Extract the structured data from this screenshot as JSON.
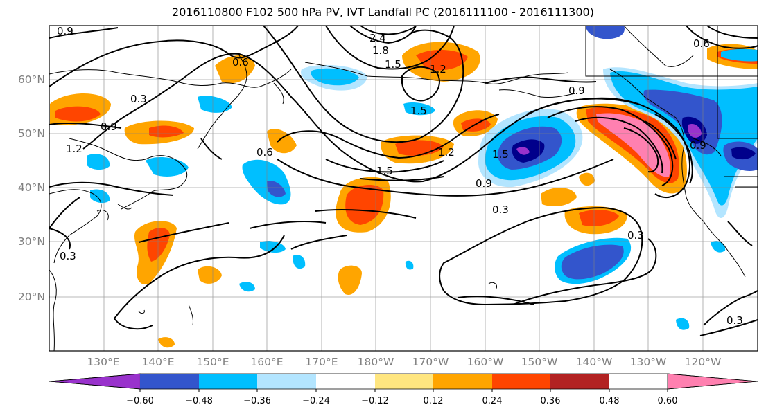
{
  "title": "2016110800 F102 500 hPa PV, IVT Landfall PC (2016111100 - 2016111300)",
  "map": {
    "lon_labels": [
      "130°E",
      "140°E",
      "150°E",
      "160°E",
      "170°E",
      "180°W",
      "170°W",
      "160°W",
      "150°W",
      "140°W",
      "130°W",
      "120°W"
    ],
    "lat_labels": [
      "60°N",
      "50°N",
      "40°N",
      "30°N",
      "20°N"
    ],
    "contour_labels": [
      "0.9",
      "0.6",
      "0.3",
      "0.9",
      "1.2",
      "2.4",
      "1.8",
      "1.5",
      "1.2",
      "1.5",
      "0.6",
      "1.2",
      "1.5",
      "1.5",
      "0.9",
      "0.3",
      "0.9",
      "0.9",
      "0.3",
      "0.3",
      "0.3",
      "0.6"
    ],
    "colors": {
      "pos_low": "#ffe680",
      "pos_mid": "#ffa500",
      "pos_high": "#ff4500",
      "pos_max": "#ff80b0",
      "neg_low": "#00bfff",
      "neg_mid": "#3355cc",
      "neg_high": "#00008b",
      "neg_max": "#9932cc"
    }
  },
  "colorbar": {
    "ticks": [
      "−0.60",
      "−0.48",
      "−0.36",
      "−0.24",
      "−0.12",
      "0.12",
      "0.24",
      "0.36",
      "0.48",
      "0.60"
    ],
    "colors": [
      "#9932cc",
      "#00008b",
      "#3355cc",
      "#00bfff",
      "#b3e5ff",
      "#ffffff",
      "#ffe680",
      "#ffa500",
      "#ff4500",
      "#b22222",
      "#ff80b0"
    ]
  }
}
